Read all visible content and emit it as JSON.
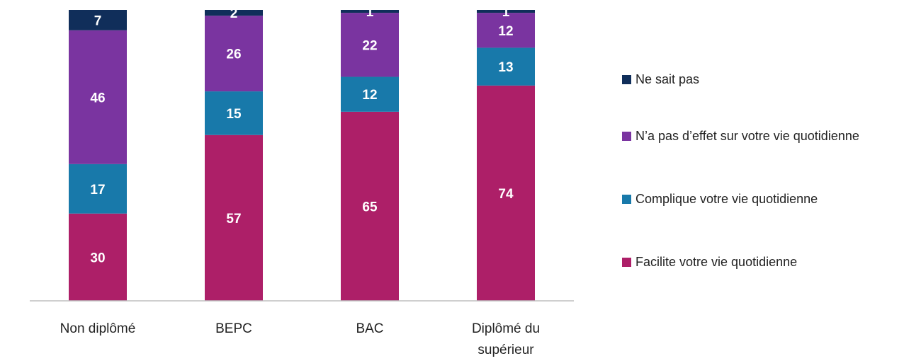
{
  "chart_data": {
    "type": "stacked-bar",
    "categories": [
      "Non diplômé",
      "BEPC",
      "BAC",
      "Diplômé du supérieur"
    ],
    "series": [
      {
        "name": "Facilite votre vie quotidienne",
        "color": "#ad1f68",
        "values": [
          30,
          57,
          65,
          74
        ]
      },
      {
        "name": "Complique votre vie quotidienne",
        "color": "#1879aa",
        "values": [
          17,
          15,
          12,
          13
        ]
      },
      {
        "name": "N’a pas d’effet sur votre vie quotidienne",
        "color": "#7a34a0",
        "values": [
          46,
          26,
          22,
          12
        ]
      },
      {
        "name": "Ne sait pas",
        "color": "#102e5a",
        "values": [
          7,
          2,
          1,
          1
        ]
      }
    ],
    "legend": "right"
  }
}
